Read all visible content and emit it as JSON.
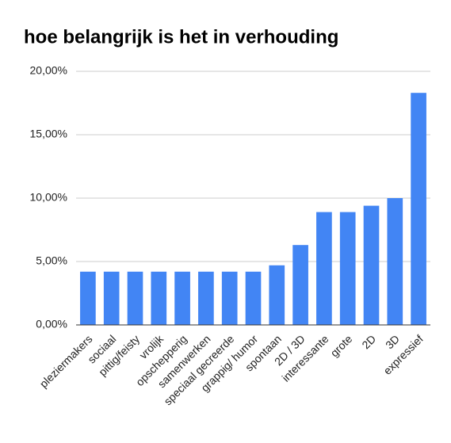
{
  "chart_data": {
    "type": "bar",
    "title": "hoe belangrijk is het in verhouding",
    "categories": [
      "pleziermakers",
      "sociaal",
      "pittig/feisty",
      "vrolijk",
      "opschepperig",
      "samenwerken",
      "speciaal gecreerde",
      "grappig/ humor",
      "spontaan",
      "2D / 3D",
      "interessante",
      "grote",
      "2D",
      "3D",
      "expressief"
    ],
    "values": [
      4.2,
      4.2,
      4.2,
      4.2,
      4.2,
      4.2,
      4.2,
      4.2,
      4.7,
      6.3,
      8.9,
      8.9,
      9.4,
      10.0,
      18.3
    ],
    "color": "#4285f4",
    "ylim": [
      0,
      20
    ],
    "yticks": [
      {
        "value": 0,
        "label": "0,00%"
      },
      {
        "value": 5,
        "label": "5,00%"
      },
      {
        "value": 10,
        "label": "10,00%"
      },
      {
        "value": 15,
        "label": "15,00%"
      },
      {
        "value": 20,
        "label": "20,00%"
      }
    ],
    "grid": true
  }
}
